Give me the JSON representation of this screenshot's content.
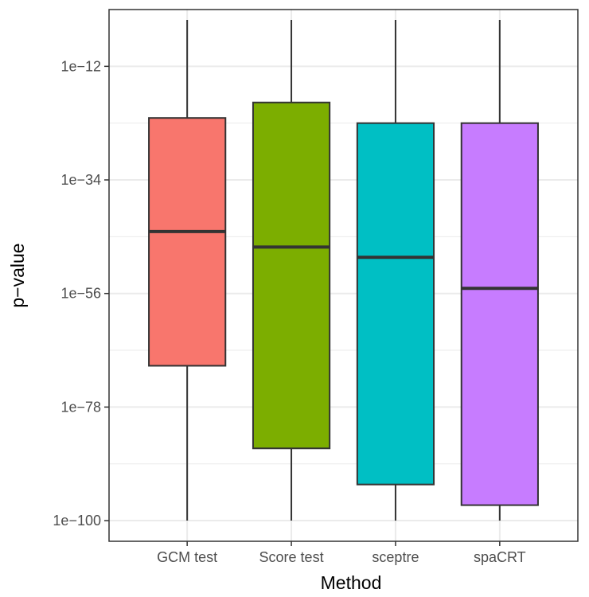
{
  "chart_data": {
    "type": "boxplot",
    "title": "",
    "xlabel": "Method",
    "ylabel": "p−value",
    "y_scale": "log10",
    "ylim": [
      1e-104,
      0.1
    ],
    "y_ticks": [
      {
        "value": 1e-12,
        "label": "1e−12"
      },
      {
        "value": 1e-34,
        "label": "1e−34"
      },
      {
        "value": 1e-56,
        "label": "1e−56"
      },
      {
        "value": 1e-78,
        "label": "1e−78"
      },
      {
        "value": 1e-100,
        "label": "1e−100"
      }
    ],
    "grid": true,
    "legend": "none",
    "categories": [
      "GCM test",
      "Score test",
      "sceptre",
      "spaCRT"
    ],
    "boxes": [
      {
        "name": "GCM test",
        "color": "#F8766D",
        "whisker_low": 1e-100,
        "q1": 1e-70,
        "median": 1e-44,
        "q3": 1e-22,
        "whisker_high": 0.001
      },
      {
        "name": "Score test",
        "color": "#7CAE00",
        "whisker_low": 1e-100,
        "q1": 1e-86,
        "median": 1e-47,
        "q3": 1e-19,
        "whisker_high": 0.001
      },
      {
        "name": "sceptre",
        "color": "#00BFC4",
        "whisker_low": 1e-100,
        "q1": 1e-93,
        "median": 1e-49,
        "q3": 1e-23,
        "whisker_high": 0.001
      },
      {
        "name": "spaCRT",
        "color": "#C77CFF",
        "whisker_low": 1e-100,
        "q1": 1e-97,
        "median": 1e-55,
        "q3": 1e-23,
        "whisker_high": 0.001
      }
    ]
  }
}
